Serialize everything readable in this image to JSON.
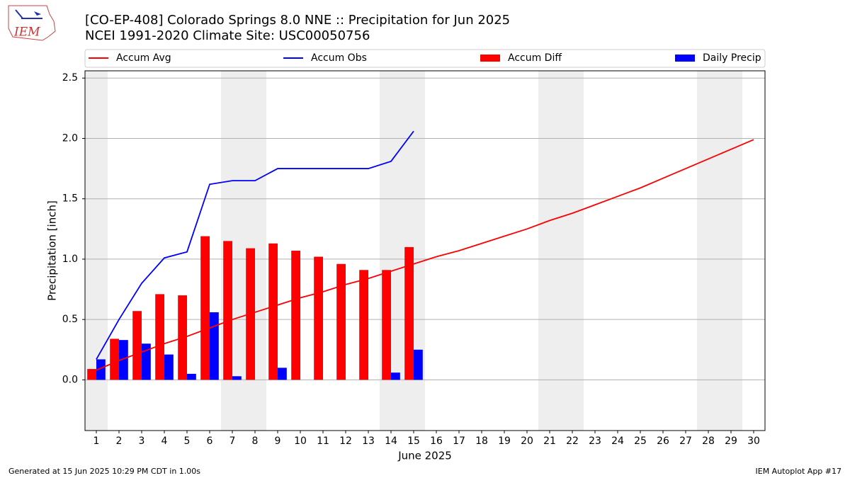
{
  "chart_data": {
    "type": "bar",
    "title": "[CO-EP-408] Colorado Springs 8.0 NNE :: Precipitation for Jun 2025",
    "subtitle": "NCEI 1991-2020 Climate Site: USC00050756",
    "logo_text": "IEM",
    "x_label": "June 2025",
    "y_label": "Precipitation [inch]",
    "x": [
      1,
      2,
      3,
      4,
      5,
      6,
      7,
      8,
      9,
      10,
      11,
      12,
      13,
      14,
      15,
      16,
      17,
      18,
      19,
      20,
      21,
      22,
      23,
      24,
      25,
      26,
      27,
      28,
      29,
      30
    ],
    "xlim": [
      0.5,
      30.5
    ],
    "xticks": [
      1,
      2,
      3,
      4,
      5,
      6,
      7,
      8,
      9,
      10,
      11,
      12,
      13,
      14,
      15,
      16,
      17,
      18,
      19,
      20,
      21,
      22,
      23,
      24,
      25,
      26,
      27,
      28,
      29,
      30
    ],
    "ylim": [
      -0.42,
      2.56
    ],
    "yticks": [
      {
        "value": 0,
        "label": "0.0"
      },
      0.5,
      {
        "value": 1,
        "label": "1.0"
      },
      1.5,
      {
        "value": 2,
        "label": "2.0"
      },
      2.5
    ],
    "grid": true,
    "weekend_days": [
      1,
      7,
      8,
      14,
      15,
      21,
      22,
      28,
      29
    ],
    "series": [
      {
        "name": "Accum Avg",
        "type": "line",
        "color": "#ff0000",
        "values": [
          0.08,
          0.16,
          0.23,
          0.3,
          0.36,
          0.43,
          0.5,
          0.56,
          0.62,
          0.68,
          0.73,
          0.79,
          0.84,
          0.9,
          0.96,
          1.02,
          1.07,
          1.13,
          1.19,
          1.25,
          1.32,
          1.38,
          1.45,
          1.52,
          1.59,
          1.67,
          1.75,
          1.83,
          1.91,
          1.99
        ]
      },
      {
        "name": "Accum Obs",
        "type": "line",
        "color": "#0000ff",
        "values": [
          0.17,
          0.5,
          0.8,
          1.01,
          1.06,
          1.62,
          1.65,
          1.65,
          1.75,
          1.75,
          1.75,
          1.75,
          1.75,
          1.81,
          2.06,
          null,
          null,
          null,
          null,
          null,
          null,
          null,
          null,
          null,
          null,
          null,
          null,
          null,
          null,
          null
        ]
      },
      {
        "name": "Accum Diff",
        "type": "bar",
        "color": "#ff0000",
        "values": [
          0.09,
          0.34,
          0.57,
          0.71,
          0.7,
          1.19,
          1.15,
          1.09,
          1.13,
          1.07,
          1.02,
          0.96,
          0.91,
          0.91,
          1.1,
          null,
          null,
          null,
          null,
          null,
          null,
          null,
          null,
          null,
          null,
          null,
          null,
          null,
          null,
          null
        ]
      },
      {
        "name": "Daily Precip",
        "type": "bar",
        "color": "#0000ff",
        "values": [
          0.17,
          0.33,
          0.3,
          0.21,
          0.05,
          0.56,
          0.03,
          0,
          0.1,
          0,
          0,
          0,
          0,
          0.06,
          0.25,
          null,
          null,
          null,
          null,
          null,
          null,
          null,
          null,
          null,
          null,
          null,
          null,
          null,
          null,
          null
        ]
      }
    ],
    "footer_left": "Generated at 15 Jun 2025 10:29 PM CDT in 1.00s",
    "footer_right": "IEM Autoplot App #17"
  }
}
